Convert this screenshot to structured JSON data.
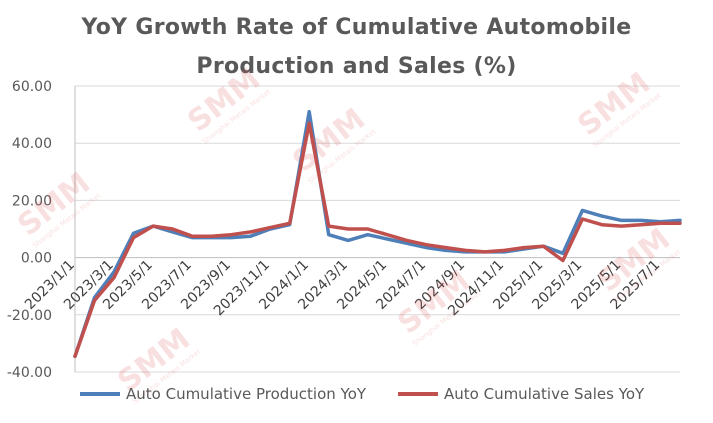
{
  "chart_data": {
    "type": "line",
    "title_line1": "YoY Growth Rate of Cumulative Automobile",
    "title_line2": "Production and Sales (%)",
    "ylim": [
      -40,
      60
    ],
    "y_ticks": [
      "-40.00",
      "-20.00",
      "0.00",
      "20.00",
      "40.00",
      "60.00"
    ],
    "y_tick_values": [
      -40,
      -20,
      0,
      20,
      40,
      60
    ],
    "x_tick_labels": [
      "2023/1/1",
      "2023/3/1",
      "2023/5/1",
      "2023/7/1",
      "2023/9/1",
      "2023/11/1",
      "2024/1/1",
      "2024/3/1",
      "2024/5/1",
      "2024/7/1",
      "2024/9/1",
      "2024/11/1",
      "2025/1/1",
      "2025/3/1",
      "2025/5/1",
      "2025/7/1"
    ],
    "x": [
      "2023/1/1",
      "2023/2/1",
      "2023/3/1",
      "2023/4/1",
      "2023/5/1",
      "2023/6/1",
      "2023/7/1",
      "2023/8/1",
      "2023/9/1",
      "2023/10/1",
      "2023/11/1",
      "2023/12/1",
      "2024/1/1",
      "2024/2/1",
      "2024/3/1",
      "2024/4/1",
      "2024/5/1",
      "2024/6/1",
      "2024/7/1",
      "2024/8/1",
      "2024/9/1",
      "2024/10/1",
      "2024/11/1",
      "2024/12/1",
      "2025/1/1",
      "2025/2/1",
      "2025/3/1",
      "2025/4/1",
      "2025/5/1",
      "2025/6/1",
      "2025/7/1",
      "2025/8/1"
    ],
    "series": [
      {
        "name": "Auto Cumulative Production YoY",
        "color": "#4f7fb8",
        "values": [
          -34.5,
          -14.0,
          -5.0,
          8.5,
          11.0,
          9.0,
          7.0,
          7.0,
          7.0,
          7.5,
          10.0,
          11.5,
          51.0,
          8.0,
          6.0,
          8.0,
          6.5,
          5.0,
          3.5,
          2.5,
          2.0,
          2.0,
          2.0,
          3.0,
          4.0,
          1.5,
          16.5,
          14.5,
          13.0,
          13.0,
          12.5,
          13.0
        ]
      },
      {
        "name": "Auto Cumulative Sales YoY",
        "color": "#c0504d",
        "values": [
          -34.5,
          -15.0,
          -7.0,
          7.0,
          11.0,
          10.0,
          7.5,
          7.5,
          8.0,
          9.0,
          10.5,
          12.0,
          47.0,
          11.0,
          10.0,
          10.0,
          8.0,
          6.0,
          4.5,
          3.5,
          2.5,
          2.0,
          2.5,
          3.5,
          4.0,
          -1.0,
          13.5,
          11.5,
          11.0,
          11.5,
          12.0,
          12.0
        ]
      }
    ],
    "grid": true,
    "legend_position": "bottom"
  },
  "watermark": {
    "brand": "SMM",
    "tagline": "Shanghai Metals Market"
  }
}
